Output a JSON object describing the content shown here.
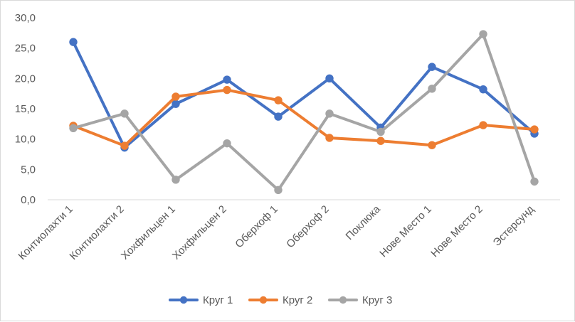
{
  "chart_data": {
    "type": "line",
    "title": "",
    "xlabel": "",
    "ylabel": "",
    "categories": [
      "Контиолахти 1",
      "Контиолахти 2",
      "Хохфильцен 1",
      "Хохфильцен 2",
      "Оберхоф 1",
      "Оберхоф 2",
      "Поклюка",
      "Нове Место 1",
      "Нове Место 2",
      "Эстерсунд"
    ],
    "ylim": [
      0,
      30
    ],
    "ytick_labels": [
      "0,0",
      "5,0",
      "10,0",
      "15,0",
      "20,0",
      "25,0",
      "30,0"
    ],
    "grid": false,
    "legend_position": "bottom",
    "series": [
      {
        "name": "Круг 1",
        "color": "#4472c4",
        "values": [
          26.0,
          8.6,
          15.8,
          19.8,
          13.7,
          20.0,
          11.9,
          21.9,
          18.2,
          10.9
        ]
      },
      {
        "name": "Круг 2",
        "color": "#ed7d31",
        "values": [
          12.2,
          8.9,
          17.0,
          18.1,
          16.4,
          10.2,
          9.7,
          9.0,
          12.3,
          11.6
        ]
      },
      {
        "name": "Круг 3",
        "color": "#a5a5a5",
        "values": [
          11.8,
          14.2,
          3.3,
          9.3,
          1.6,
          14.2,
          11.2,
          18.3,
          27.3,
          3.0
        ]
      }
    ]
  }
}
